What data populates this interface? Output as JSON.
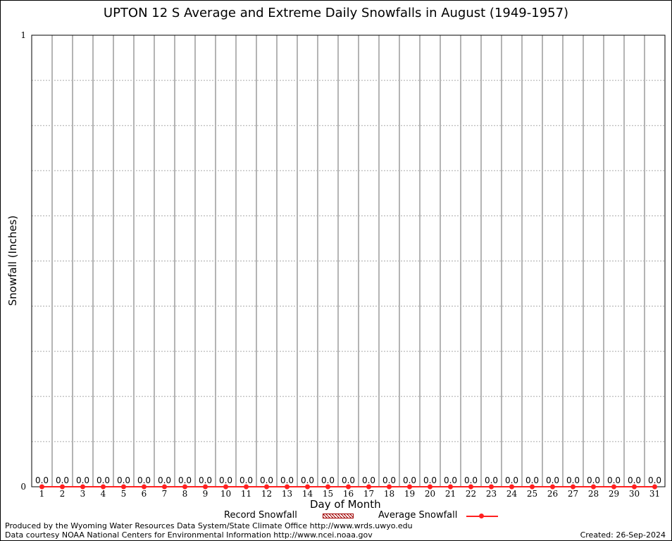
{
  "chart_data": {
    "type": "bar",
    "title": "UPTON 12 S Average and Extreme Daily Snowfalls in August (1949-1957)",
    "xlabel": "Day of Month",
    "ylabel": "Snowfall (Inches)",
    "ylim": [
      0,
      1
    ],
    "yticks": [
      "0",
      "1"
    ],
    "grid": true,
    "categories": [
      "1",
      "2",
      "3",
      "4",
      "5",
      "6",
      "7",
      "8",
      "9",
      "10",
      "11",
      "12",
      "13",
      "14",
      "15",
      "16",
      "17",
      "18",
      "19",
      "20",
      "21",
      "22",
      "23",
      "24",
      "25",
      "26",
      "27",
      "28",
      "29",
      "30",
      "31"
    ],
    "series": [
      {
        "name": "Record Snowfall",
        "type": "bar",
        "color": "#a00000",
        "values": [
          0,
          0,
          0,
          0,
          0,
          0,
          0,
          0,
          0,
          0,
          0,
          0,
          0,
          0,
          0,
          0,
          0,
          0,
          0,
          0,
          0,
          0,
          0,
          0,
          0,
          0,
          0,
          0,
          0,
          0,
          0
        ]
      },
      {
        "name": "Average Snowfall",
        "type": "line",
        "color": "#ff2020",
        "values": [
          0,
          0,
          0,
          0,
          0,
          0,
          0,
          0,
          0,
          0,
          0,
          0,
          0,
          0,
          0,
          0,
          0,
          0,
          0,
          0,
          0,
          0,
          0,
          0,
          0,
          0,
          0,
          0,
          0,
          0,
          0
        ]
      }
    ],
    "data_labels": [
      "0.0",
      "0.0",
      "0.0",
      "0.0",
      "0.0",
      "0.0",
      "0.0",
      "0.0",
      "0.0",
      "0.0",
      "0.0",
      "0.0",
      "0.0",
      "0.0",
      "0.0",
      "0.0",
      "0.0",
      "0.0",
      "0.0",
      "0.0",
      "0.0",
      "0.0",
      "0.0",
      "0.0",
      "0.0",
      "0.0",
      "0.0",
      "0.0",
      "0.0",
      "0.0",
      "0.0"
    ],
    "legend_placement": "bottom"
  },
  "footer": {
    "produced_by": "Produced by the Wyoming Water Resources Data System/State Climate Office http://www.wrds.uwyo.edu",
    "data_courtesy": "Data courtesy NOAA National Centers for Environmental Information http://www.ncei.noaa.gov",
    "created": "Created: 26-Sep-2024"
  }
}
